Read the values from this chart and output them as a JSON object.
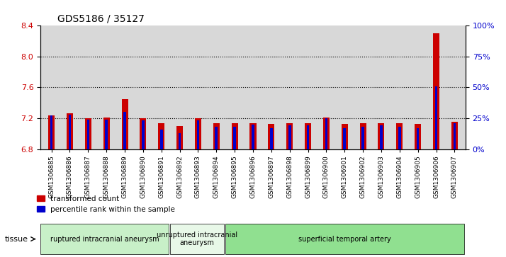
{
  "title": "GDS5186 / 35127",
  "samples": [
    "GSM1306885",
    "GSM1306886",
    "GSM1306887",
    "GSM1306888",
    "GSM1306889",
    "GSM1306890",
    "GSM1306891",
    "GSM1306892",
    "GSM1306893",
    "GSM1306894",
    "GSM1306895",
    "GSM1306896",
    "GSM1306897",
    "GSM1306898",
    "GSM1306899",
    "GSM1306900",
    "GSM1306901",
    "GSM1306902",
    "GSM1306903",
    "GSM1306904",
    "GSM1306905",
    "GSM1306906",
    "GSM1306907"
  ],
  "red_values": [
    7.24,
    7.26,
    7.2,
    7.21,
    7.45,
    7.2,
    7.14,
    7.1,
    7.2,
    7.14,
    7.14,
    7.14,
    7.13,
    7.14,
    7.14,
    7.21,
    7.13,
    7.14,
    7.14,
    7.14,
    7.13,
    8.3,
    7.15
  ],
  "blue_values": [
    27,
    28,
    24,
    24,
    30,
    23,
    16,
    13,
    23,
    18,
    18,
    20,
    17,
    19,
    19,
    25,
    17,
    18,
    19,
    18,
    17,
    51,
    21
  ],
  "groups": [
    {
      "label": "ruptured intracranial aneurysm",
      "start": 0,
      "end": 7,
      "color": "#c8f0c8"
    },
    {
      "label": "unruptured intracranial\naneurysm",
      "start": 7,
      "end": 10,
      "color": "#e8f8e8"
    },
    {
      "label": "superficial temporal artery",
      "start": 10,
      "end": 23,
      "color": "#90e090"
    }
  ],
  "ylim_left": [
    6.8,
    8.4
  ],
  "ylim_right": [
    0,
    100
  ],
  "yticks_left": [
    6.8,
    7.2,
    7.6,
    8.0,
    8.4
  ],
  "yticks_right": [
    0,
    25,
    50,
    75,
    100
  ],
  "bar_color_red": "#cc0000",
  "bar_color_blue": "#0000cc",
  "bar_width": 0.35,
  "background_color": "#d8d8d8",
  "legend_labels": [
    "transformed count",
    "percentile rank within the sample"
  ]
}
